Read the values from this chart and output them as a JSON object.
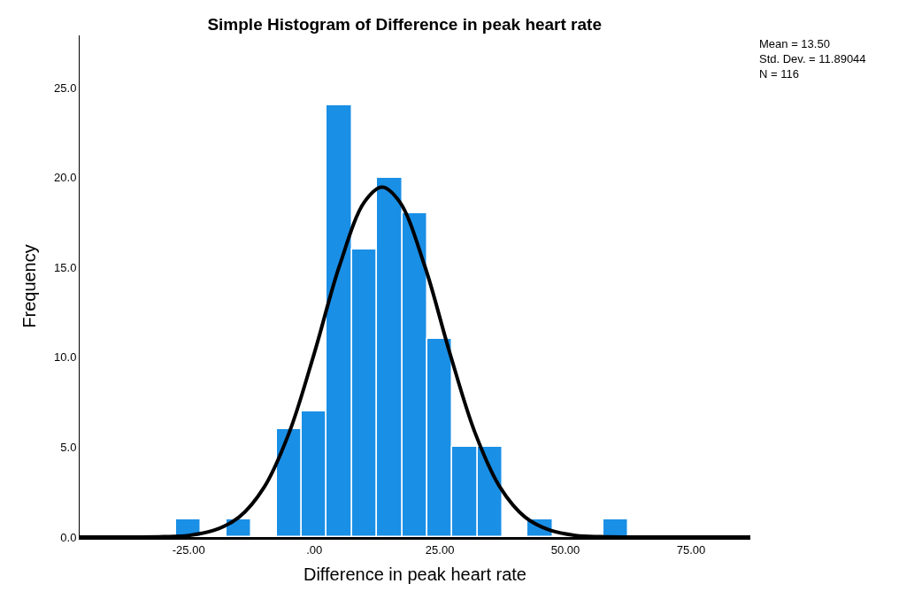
{
  "chart_data": {
    "type": "histogram",
    "title": "Simple Histogram of Difference in peak heart rate",
    "xlabel": "Difference in peak heart rate",
    "ylabel": "Frequency",
    "bins": [
      -27.5,
      -22.5,
      -17.5,
      -12.5,
      -7.5,
      -2.5,
      2.5,
      7.5,
      12.5,
      17.5,
      22.5,
      27.5,
      32.5,
      37.5,
      42.5,
      47.5,
      52.5,
      57.5,
      62.5
    ],
    "values": [
      1,
      0,
      1,
      0,
      6,
      7,
      24,
      16,
      20,
      18,
      11,
      5,
      5,
      0,
      1,
      0,
      0,
      1
    ],
    "color": "#1a8fe6",
    "series": [
      {
        "type": "line",
        "color": "#000000",
        "x": [
          -46.7,
          -35,
          -30,
          -25,
          -20,
          -15,
          -10,
          -5,
          0,
          5,
          10,
          13.5,
          17,
          22,
          27,
          32,
          37,
          42,
          47,
          52,
          57,
          62,
          75,
          86.8
        ],
        "values": [
          0,
          0,
          0.02,
          0.09,
          0.37,
          1.1,
          2.76,
          5.8,
          10.22,
          15.07,
          18.64,
          19.46,
          18.64,
          15.07,
          10.22,
          5.8,
          2.76,
          1.1,
          0.37,
          0.09,
          0.02,
          0,
          0,
          0
        ]
      }
    ],
    "xlim": [
      -46.7,
      86.8
    ],
    "ylim": [
      0,
      27.9
    ],
    "xticks": [
      {
        "value": -25,
        "label": "-25.00"
      },
      {
        "value": 0,
        "label": ".00"
      },
      {
        "value": 25,
        "label": "25.00"
      },
      {
        "value": 50,
        "label": "50.00"
      },
      {
        "value": 75,
        "label": "75.00"
      }
    ],
    "yticks": [
      {
        "value": 0,
        "label": "0.0"
      },
      {
        "value": 5,
        "label": "5.0"
      },
      {
        "value": 10,
        "label": "10.0"
      },
      {
        "value": 15,
        "label": "15.0"
      },
      {
        "value": 20,
        "label": "20.0"
      },
      {
        "value": 25,
        "label": "25.0"
      }
    ],
    "annotations": [
      "Mean = 13.50\nStd. Dev. = 11.89044\nN = 116"
    ],
    "marker": "none",
    "line_style": "solid"
  }
}
